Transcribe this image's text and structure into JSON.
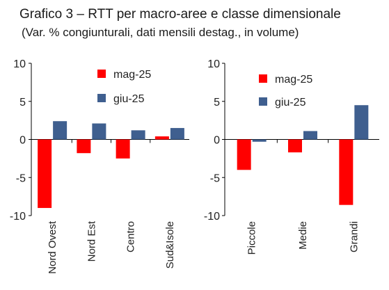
{
  "title": "Grafico 3 – RTT per macro-aree e classe dimensionale",
  "subtitle": "(Var. % congiunturali, dati mensili destag., in volume)",
  "colors": {
    "mag-25": "#ff0000",
    "giu-25": "#3f5f8f"
  },
  "chart_data": [
    {
      "type": "bar",
      "categories": [
        "Nord Ovest",
        "Nord Est",
        "Centro",
        "Sud&Isole"
      ],
      "series": [
        {
          "name": "mag-25",
          "values": [
            -9.0,
            -1.8,
            -2.5,
            0.4
          ]
        },
        {
          "name": "giu-25",
          "values": [
            2.4,
            2.1,
            1.2,
            1.5
          ]
        }
      ],
      "ylim": [
        -10,
        10
      ],
      "yticks": [
        10,
        5,
        0,
        -5,
        -10
      ],
      "legend": "top-center"
    },
    {
      "type": "bar",
      "categories": [
        "Piccole",
        "Medie",
        "Grandi"
      ],
      "series": [
        {
          "name": "mag-25",
          "values": [
            -4.0,
            -1.7,
            -8.6
          ]
        },
        {
          "name": "giu-25",
          "values": [
            -0.3,
            1.1,
            4.5
          ]
        }
      ],
      "ylim": [
        -10,
        10
      ],
      "yticks": [
        10,
        5,
        0,
        -5,
        -10
      ],
      "legend": "top-center"
    }
  ]
}
